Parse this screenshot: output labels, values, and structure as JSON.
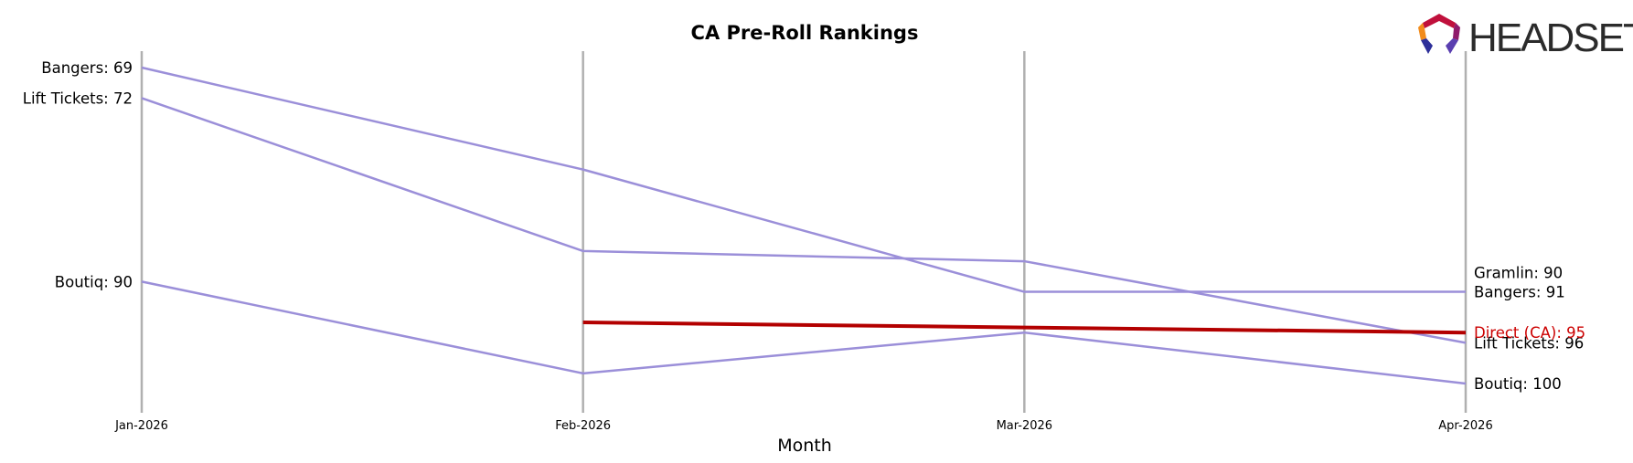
{
  "brand": {
    "logo_text": "HEADSET",
    "logo_colors": [
      "#e8322a",
      "#c0103c",
      "#8f1a6b",
      "#f28c1c",
      "#2d2f9a",
      "#5a3fb0"
    ],
    "icon": "headset-hexagon-logo-icon"
  },
  "chart_data": {
    "type": "line",
    "title": "CA Pre-Roll Rankings",
    "xlabel": "Month",
    "ylabel": "",
    "categories": [
      "Jan-2026",
      "Feb-2026",
      "Mar-2026",
      "Apr-2026"
    ],
    "y_inverted": true,
    "ylim": [
      67,
      101
    ],
    "grid": "vertical lines at each month",
    "legend": "none (end labels)",
    "series": [
      {
        "name": "Bangers",
        "values": [
          69,
          79,
          91,
          91
        ],
        "color": "#9b8fd9",
        "highlight": false,
        "start_label": "Bangers: 69",
        "end_label": "Bangers: 91"
      },
      {
        "name": "Lift Tickets",
        "values": [
          72,
          87,
          88,
          96
        ],
        "color": "#9b8fd9",
        "highlight": false,
        "start_label": "Lift Tickets: 72",
        "end_label": "Lift Tickets: 96"
      },
      {
        "name": "Gramlin",
        "values": [
          null,
          null,
          null,
          90
        ],
        "color": "#9b8fd9",
        "highlight": false,
        "start_label": "",
        "end_label": "Gramlin: 90"
      },
      {
        "name": "Boutiq",
        "values": [
          90,
          99,
          95,
          100
        ],
        "color": "#9b8fd9",
        "highlight": false,
        "start_label": "Boutiq: 90",
        "end_label": "Boutiq: 100"
      },
      {
        "name": "Direct (CA)",
        "values": [
          null,
          94,
          94.5,
          95
        ],
        "color": "#b30000",
        "highlight": true,
        "start_label": "",
        "end_label": "Direct (CA): 95"
      }
    ]
  }
}
